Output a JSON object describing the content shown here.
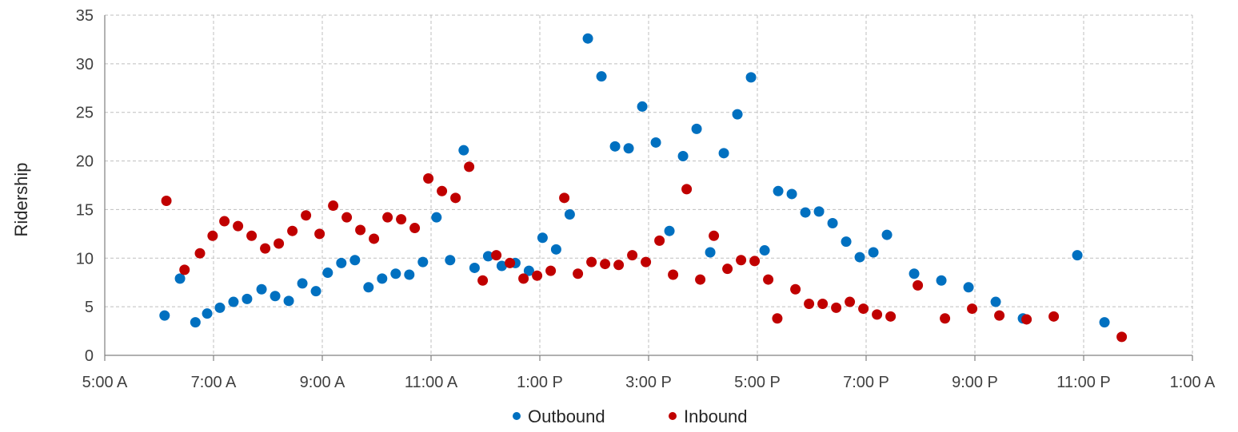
{
  "chart_data": {
    "type": "scatter",
    "title": "",
    "xlabel": "",
    "ylabel": "Ridership",
    "xlim": [
      "5:00 A",
      "1:00 A"
    ],
    "ylim": [
      0,
      35
    ],
    "y_ticks": [
      0,
      5,
      10,
      15,
      20,
      25,
      30,
      35
    ],
    "x_ticks": [
      "5:00 A",
      "7:00 A",
      "9:00 A",
      "11:00 A",
      "1:00 P",
      "3:00 P",
      "5:00 P",
      "7:00 P",
      "9:00 P",
      "11:00 P",
      "1:00 A"
    ],
    "grid": true,
    "legend_position": "bottom",
    "series": [
      {
        "name": "Outbound",
        "color": "#0070C0",
        "points": [
          [
            "6:06 A",
            4.1
          ],
          [
            "6:23 A",
            7.9
          ],
          [
            "6:40 A",
            3.4
          ],
          [
            "6:53 A",
            4.3
          ],
          [
            "7:07 A",
            4.9
          ],
          [
            "7:22 A",
            5.5
          ],
          [
            "7:37 A",
            5.8
          ],
          [
            "7:53 A",
            6.8
          ],
          [
            "8:08 A",
            6.1
          ],
          [
            "8:23 A",
            5.6
          ],
          [
            "8:38 A",
            7.4
          ],
          [
            "8:53 A",
            6.6
          ],
          [
            "9:06 A",
            8.5
          ],
          [
            "9:21 A",
            9.5
          ],
          [
            "9:36 A",
            9.8
          ],
          [
            "9:51 A",
            7.0
          ],
          [
            "10:06 A",
            7.9
          ],
          [
            "10:21 A",
            8.4
          ],
          [
            "10:36 A",
            8.3
          ],
          [
            "10:51 A",
            9.6
          ],
          [
            "11:06 A",
            14.2
          ],
          [
            "11:21 A",
            9.8
          ],
          [
            "11:36 A",
            21.1
          ],
          [
            "11:48 A",
            9.0
          ],
          [
            "12:03 P",
            10.2
          ],
          [
            "12:18 P",
            9.2
          ],
          [
            "12:33 P",
            9.5
          ],
          [
            "12:48 P",
            8.7
          ],
          [
            "1:03 P",
            12.1
          ],
          [
            "1:18 P",
            10.9
          ],
          [
            "1:33 P",
            14.5
          ],
          [
            "1:53 P",
            32.6
          ],
          [
            "2:08 P",
            28.7
          ],
          [
            "2:23 P",
            21.5
          ],
          [
            "2:38 P",
            21.3
          ],
          [
            "2:53 P",
            25.6
          ],
          [
            "3:08 P",
            21.9
          ],
          [
            "3:23 P",
            12.8
          ],
          [
            "3:38 P",
            20.5
          ],
          [
            "3:53 P",
            23.3
          ],
          [
            "4:08 P",
            10.6
          ],
          [
            "4:23 P",
            20.8
          ],
          [
            "4:38 P",
            24.8
          ],
          [
            "4:53 P",
            28.6
          ],
          [
            "5:08 P",
            10.8
          ],
          [
            "5:23 P",
            16.9
          ],
          [
            "5:38 P",
            16.6
          ],
          [
            "5:53 P",
            14.7
          ],
          [
            "6:08 P",
            14.8
          ],
          [
            "6:23 P",
            13.6
          ],
          [
            "6:38 P",
            11.7
          ],
          [
            "6:53 P",
            10.1
          ],
          [
            "7:08 P",
            10.6
          ],
          [
            "7:23 P",
            12.4
          ],
          [
            "7:53 P",
            8.4
          ],
          [
            "8:23 P",
            7.7
          ],
          [
            "8:53 P",
            7.0
          ],
          [
            "9:23 P",
            5.5
          ],
          [
            "9:53 P",
            3.8
          ],
          [
            "10:53 P",
            10.3
          ],
          [
            "11:23 P",
            3.4
          ]
        ]
      },
      {
        "name": "Inbound",
        "color": "#C00000",
        "points": [
          [
            "6:08 A",
            15.9
          ],
          [
            "6:28 A",
            8.8
          ],
          [
            "6:45 A",
            10.5
          ],
          [
            "6:59 A",
            12.3
          ],
          [
            "7:12 A",
            13.8
          ],
          [
            "7:27 A",
            13.3
          ],
          [
            "7:42 A",
            12.3
          ],
          [
            "7:57 A",
            11.0
          ],
          [
            "8:12 A",
            11.5
          ],
          [
            "8:27 A",
            12.8
          ],
          [
            "8:42 A",
            14.4
          ],
          [
            "8:57 A",
            12.5
          ],
          [
            "9:12 A",
            15.4
          ],
          [
            "9:27 A",
            14.2
          ],
          [
            "9:42 A",
            12.9
          ],
          [
            "9:57 A",
            12.0
          ],
          [
            "10:12 A",
            14.2
          ],
          [
            "10:27 A",
            14.0
          ],
          [
            "10:42 A",
            13.1
          ],
          [
            "10:57 A",
            18.2
          ],
          [
            "11:12 A",
            16.9
          ],
          [
            "11:27 A",
            16.2
          ],
          [
            "11:42 A",
            19.4
          ],
          [
            "11:57 A",
            7.7
          ],
          [
            "12:12 P",
            10.3
          ],
          [
            "12:27 P",
            9.5
          ],
          [
            "12:42 P",
            7.9
          ],
          [
            "12:57 P",
            8.2
          ],
          [
            "1:12 P",
            8.7
          ],
          [
            "1:27 P",
            16.2
          ],
          [
            "1:42 P",
            8.4
          ],
          [
            "1:57 P",
            9.6
          ],
          [
            "2:12 P",
            9.4
          ],
          [
            "2:27 P",
            9.3
          ],
          [
            "2:42 P",
            10.3
          ],
          [
            "2:57 P",
            9.6
          ],
          [
            "3:12 P",
            11.8
          ],
          [
            "3:27 P",
            8.3
          ],
          [
            "3:42 P",
            17.1
          ],
          [
            "3:57 P",
            7.8
          ],
          [
            "4:12 P",
            12.3
          ],
          [
            "4:27 P",
            8.9
          ],
          [
            "4:42 P",
            9.8
          ],
          [
            "4:57 P",
            9.7
          ],
          [
            "5:12 P",
            7.8
          ],
          [
            "5:22 P",
            3.8
          ],
          [
            "5:42 P",
            6.8
          ],
          [
            "5:57 P",
            5.3
          ],
          [
            "6:12 P",
            5.3
          ],
          [
            "6:27 P",
            4.9
          ],
          [
            "6:42 P",
            5.5
          ],
          [
            "6:57 P",
            4.8
          ],
          [
            "7:12 P",
            4.2
          ],
          [
            "7:27 P",
            4.0
          ],
          [
            "7:57 P",
            7.2
          ],
          [
            "8:27 P",
            3.8
          ],
          [
            "8:57 P",
            4.8
          ],
          [
            "9:27 P",
            4.1
          ],
          [
            "9:57 P",
            3.7
          ],
          [
            "10:27 P",
            4.0
          ],
          [
            "11:42 P",
            1.9
          ]
        ]
      }
    ]
  }
}
